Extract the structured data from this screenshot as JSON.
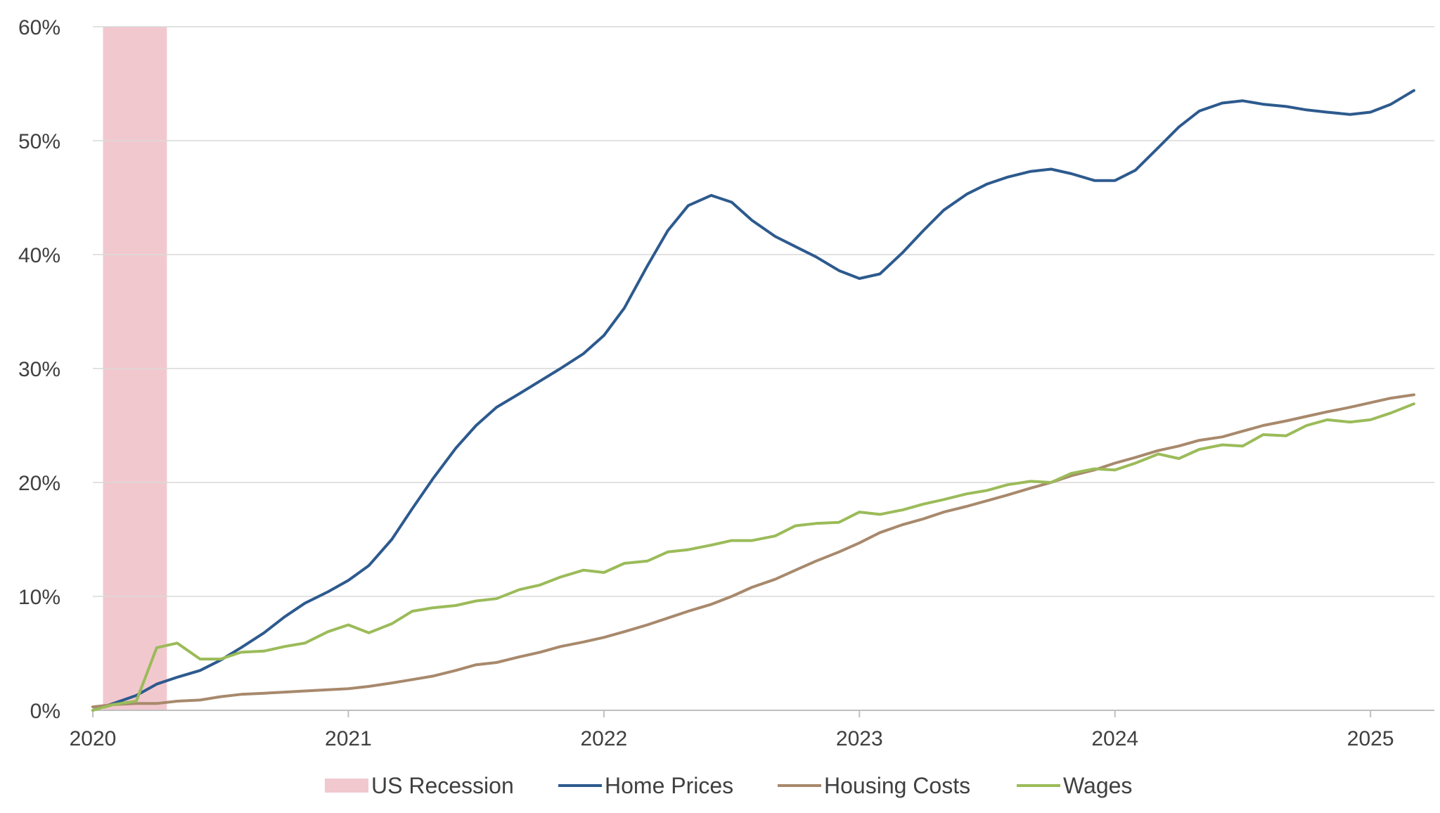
{
  "chart_data": {
    "type": "line",
    "title": "",
    "xlabel": "",
    "ylabel": "",
    "ylim": [
      0,
      60
    ],
    "yticks": [
      "0%",
      "10%",
      "20%",
      "30%",
      "40%",
      "50%",
      "60%"
    ],
    "xticks": [
      "2020",
      "2021",
      "2022",
      "2023",
      "2024",
      "2025"
    ],
    "grid": "horizontal",
    "legend_position": "bottom",
    "recession": {
      "name": "US Recession",
      "start": 2020.04,
      "end": 2020.29,
      "color": "#f2c8cf"
    },
    "series": [
      {
        "name": "Home Prices",
        "color": "#2d5a8e",
        "points": [
          [
            2020.0,
            0.0
          ],
          [
            2020.08,
            0.6
          ],
          [
            2020.17,
            1.3
          ],
          [
            2020.25,
            2.3
          ],
          [
            2020.33,
            2.9
          ],
          [
            2020.42,
            3.5
          ],
          [
            2020.5,
            4.4
          ],
          [
            2020.58,
            5.5
          ],
          [
            2020.67,
            6.8
          ],
          [
            2020.75,
            8.2
          ],
          [
            2020.83,
            9.4
          ],
          [
            2020.92,
            10.4
          ],
          [
            2021.0,
            11.4
          ],
          [
            2021.08,
            12.7
          ],
          [
            2021.17,
            15.0
          ],
          [
            2021.25,
            17.7
          ],
          [
            2021.33,
            20.3
          ],
          [
            2021.42,
            23.0
          ],
          [
            2021.5,
            25.0
          ],
          [
            2021.58,
            26.6
          ],
          [
            2021.67,
            27.8
          ],
          [
            2021.75,
            28.9
          ],
          [
            2021.83,
            30.0
          ],
          [
            2021.92,
            31.3
          ],
          [
            2022.0,
            32.9
          ],
          [
            2022.08,
            35.3
          ],
          [
            2022.17,
            39.0
          ],
          [
            2022.25,
            42.1
          ],
          [
            2022.33,
            44.3
          ],
          [
            2022.42,
            45.2
          ],
          [
            2022.5,
            44.6
          ],
          [
            2022.58,
            43.0
          ],
          [
            2022.67,
            41.6
          ],
          [
            2022.75,
            40.7
          ],
          [
            2022.83,
            39.8
          ],
          [
            2022.92,
            38.6
          ],
          [
            2023.0,
            37.9
          ],
          [
            2023.08,
            38.3
          ],
          [
            2023.17,
            40.2
          ],
          [
            2023.25,
            42.1
          ],
          [
            2023.33,
            43.9
          ],
          [
            2023.42,
            45.3
          ],
          [
            2023.5,
            46.2
          ],
          [
            2023.58,
            46.8
          ],
          [
            2023.67,
            47.3
          ],
          [
            2023.75,
            47.5
          ],
          [
            2023.83,
            47.1
          ],
          [
            2023.92,
            46.5
          ],
          [
            2024.0,
            46.5
          ],
          [
            2024.08,
            47.4
          ],
          [
            2024.17,
            49.4
          ],
          [
            2024.25,
            51.2
          ],
          [
            2024.33,
            52.6
          ],
          [
            2024.42,
            53.3
          ],
          [
            2024.5,
            53.5
          ],
          [
            2024.58,
            53.2
          ],
          [
            2024.67,
            53.0
          ],
          [
            2024.75,
            52.7
          ],
          [
            2024.83,
            52.5
          ],
          [
            2024.92,
            52.3
          ],
          [
            2025.0,
            52.5
          ],
          [
            2025.08,
            53.2
          ],
          [
            2025.17,
            54.4
          ]
        ]
      },
      {
        "name": "Housing Costs",
        "color": "#a8896c",
        "points": [
          [
            2020.0,
            0.3
          ],
          [
            2020.08,
            0.5
          ],
          [
            2020.17,
            0.6
          ],
          [
            2020.25,
            0.6
          ],
          [
            2020.33,
            0.8
          ],
          [
            2020.42,
            0.9
          ],
          [
            2020.5,
            1.2
          ],
          [
            2020.58,
            1.4
          ],
          [
            2020.67,
            1.5
          ],
          [
            2020.75,
            1.6
          ],
          [
            2020.83,
            1.7
          ],
          [
            2020.92,
            1.8
          ],
          [
            2021.0,
            1.9
          ],
          [
            2021.08,
            2.1
          ],
          [
            2021.17,
            2.4
          ],
          [
            2021.25,
            2.7
          ],
          [
            2021.33,
            3.0
          ],
          [
            2021.42,
            3.5
          ],
          [
            2021.5,
            4.0
          ],
          [
            2021.58,
            4.2
          ],
          [
            2021.67,
            4.7
          ],
          [
            2021.75,
            5.1
          ],
          [
            2021.83,
            5.6
          ],
          [
            2021.92,
            6.0
          ],
          [
            2022.0,
            6.4
          ],
          [
            2022.08,
            6.9
          ],
          [
            2022.17,
            7.5
          ],
          [
            2022.25,
            8.1
          ],
          [
            2022.33,
            8.7
          ],
          [
            2022.42,
            9.3
          ],
          [
            2022.5,
            10.0
          ],
          [
            2022.58,
            10.8
          ],
          [
            2022.67,
            11.5
          ],
          [
            2022.75,
            12.3
          ],
          [
            2022.83,
            13.1
          ],
          [
            2022.92,
            13.9
          ],
          [
            2023.0,
            14.7
          ],
          [
            2023.08,
            15.6
          ],
          [
            2023.17,
            16.3
          ],
          [
            2023.25,
            16.8
          ],
          [
            2023.33,
            17.4
          ],
          [
            2023.42,
            17.9
          ],
          [
            2023.5,
            18.4
          ],
          [
            2023.58,
            18.9
          ],
          [
            2023.67,
            19.5
          ],
          [
            2023.75,
            20.0
          ],
          [
            2023.83,
            20.6
          ],
          [
            2023.92,
            21.1
          ],
          [
            2024.0,
            21.7
          ],
          [
            2024.08,
            22.2
          ],
          [
            2024.17,
            22.8
          ],
          [
            2024.25,
            23.2
          ],
          [
            2024.33,
            23.7
          ],
          [
            2024.42,
            24.0
          ],
          [
            2024.5,
            24.5
          ],
          [
            2024.58,
            25.0
          ],
          [
            2024.67,
            25.4
          ],
          [
            2024.75,
            25.8
          ],
          [
            2024.83,
            26.2
          ],
          [
            2024.92,
            26.6
          ],
          [
            2025.0,
            27.0
          ],
          [
            2025.08,
            27.4
          ],
          [
            2025.17,
            27.7
          ]
        ]
      },
      {
        "name": "Wages",
        "color": "#9bbb59",
        "points": [
          [
            2020.0,
            0.0
          ],
          [
            2020.08,
            0.5
          ],
          [
            2020.17,
            0.8
          ],
          [
            2020.25,
            5.5
          ],
          [
            2020.33,
            5.9
          ],
          [
            2020.42,
            4.5
          ],
          [
            2020.5,
            4.5
          ],
          [
            2020.58,
            5.1
          ],
          [
            2020.67,
            5.2
          ],
          [
            2020.75,
            5.6
          ],
          [
            2020.83,
            5.9
          ],
          [
            2020.92,
            6.9
          ],
          [
            2021.0,
            7.5
          ],
          [
            2021.08,
            6.8
          ],
          [
            2021.17,
            7.6
          ],
          [
            2021.25,
            8.7
          ],
          [
            2021.33,
            9.0
          ],
          [
            2021.42,
            9.2
          ],
          [
            2021.5,
            9.6
          ],
          [
            2021.58,
            9.8
          ],
          [
            2021.67,
            10.6
          ],
          [
            2021.75,
            11.0
          ],
          [
            2021.83,
            11.7
          ],
          [
            2021.92,
            12.3
          ],
          [
            2022.0,
            12.1
          ],
          [
            2022.08,
            12.9
          ],
          [
            2022.17,
            13.1
          ],
          [
            2022.25,
            13.9
          ],
          [
            2022.33,
            14.1
          ],
          [
            2022.42,
            14.5
          ],
          [
            2022.5,
            14.9
          ],
          [
            2022.58,
            14.9
          ],
          [
            2022.67,
            15.3
          ],
          [
            2022.75,
            16.2
          ],
          [
            2022.83,
            16.4
          ],
          [
            2022.92,
            16.5
          ],
          [
            2023.0,
            17.4
          ],
          [
            2023.08,
            17.2
          ],
          [
            2023.17,
            17.6
          ],
          [
            2023.25,
            18.1
          ],
          [
            2023.33,
            18.5
          ],
          [
            2023.42,
            19.0
          ],
          [
            2023.5,
            19.3
          ],
          [
            2023.58,
            19.8
          ],
          [
            2023.67,
            20.1
          ],
          [
            2023.75,
            20.0
          ],
          [
            2023.83,
            20.8
          ],
          [
            2023.92,
            21.2
          ],
          [
            2024.0,
            21.1
          ],
          [
            2024.08,
            21.7
          ],
          [
            2024.17,
            22.5
          ],
          [
            2024.25,
            22.1
          ],
          [
            2024.33,
            22.9
          ],
          [
            2024.42,
            23.3
          ],
          [
            2024.5,
            23.2
          ],
          [
            2024.58,
            24.2
          ],
          [
            2024.67,
            24.1
          ],
          [
            2024.75,
            25.0
          ],
          [
            2024.83,
            25.5
          ],
          [
            2024.92,
            25.3
          ],
          [
            2025.0,
            25.5
          ],
          [
            2025.08,
            26.1
          ],
          [
            2025.17,
            26.9
          ]
        ]
      }
    ]
  }
}
